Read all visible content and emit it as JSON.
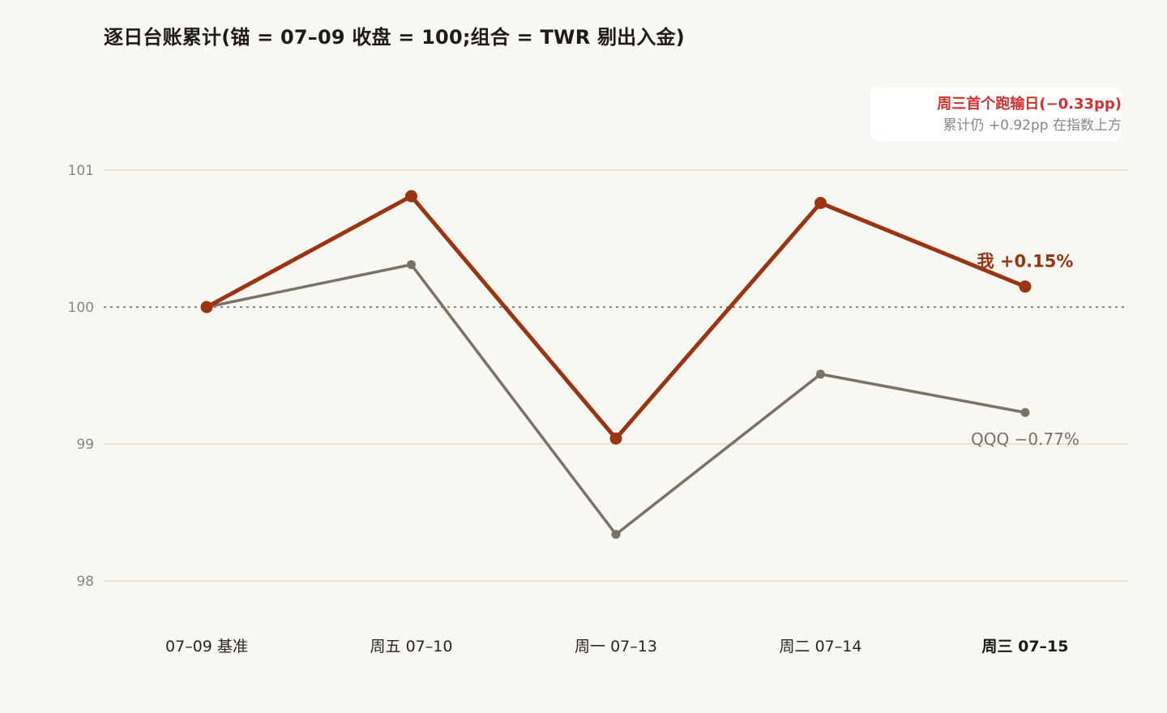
{
  "title": "逐日台账累计(锚 = 07–09 收盘 = 100;组合 = TWR 剔出入金)",
  "colors": {
    "background": "#f9f7f2",
    "portfolio": "#9a3412",
    "benchmark": "#7a716b",
    "gridline": "#e8e3d6",
    "baseline": "#8a8580",
    "tick_text": "#8a8580",
    "category_text": "#2a2520",
    "callout_headline": "#d0312d",
    "callout_detail": "#8a8580",
    "callout_box": "#ffffff"
  },
  "callout": {
    "headline": "周三首个跑输日(−0.33pp)",
    "detail": "累计仍 +0.92pp 在指数上方"
  },
  "chart_data": {
    "type": "line",
    "categories": [
      "07–09 基准",
      "周五 07–10",
      "周一 07–13",
      "周二 07–14",
      "周三 07–15"
    ],
    "highlight_category_index": 4,
    "ylim": [
      97.6,
      101.4
    ],
    "yticks": [
      98,
      99,
      100,
      101
    ],
    "baseline": 100,
    "baseline_style": "dotted",
    "grid": true,
    "xlabel": "",
    "ylabel": "",
    "series": [
      {
        "name": "我",
        "end_label": "我 +0.15%",
        "color": "#9a3412",
        "emphasis": "bold",
        "values": [
          100.0,
          100.81,
          99.04,
          100.76,
          100.15
        ]
      },
      {
        "name": "QQQ",
        "end_label": "QQQ −0.77%",
        "color": "#7a716b",
        "emphasis": "normal",
        "values": [
          100.0,
          100.31,
          98.34,
          99.51,
          99.23
        ]
      }
    ]
  }
}
